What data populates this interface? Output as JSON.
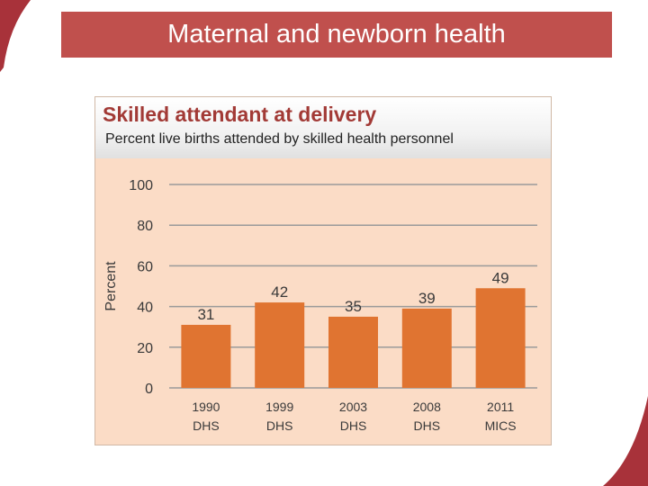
{
  "slide": {
    "title": "Maternal and newborn health",
    "accent_color": "#c0504d"
  },
  "chart_data": {
    "type": "bar",
    "title": "Skilled attendant at delivery",
    "subtitle": "Percent live births attended by skilled health personnel",
    "ylabel": "Percent",
    "xlabel": "",
    "categories": [
      [
        "1990",
        "DHS"
      ],
      [
        "1999",
        "DHS"
      ],
      [
        "2003",
        "DHS"
      ],
      [
        "2008",
        "DHS"
      ],
      [
        "2011",
        "MICS"
      ]
    ],
    "values": [
      31,
      42,
      35,
      39,
      49
    ],
    "ylim": [
      0,
      100
    ],
    "yticks": [
      0,
      20,
      40,
      60,
      80,
      100
    ],
    "grid": true,
    "bar_color": "#e07431",
    "background_color": "#fbdcc6"
  }
}
